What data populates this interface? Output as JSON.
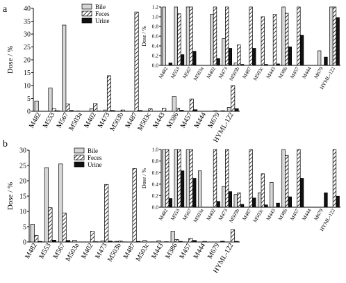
{
  "figure": {
    "panel_a_label": "a",
    "panel_b_label": "b"
  },
  "colors": {
    "bile": "#d6d6d6",
    "urine": "#111111",
    "feces_fill": "#ffffff",
    "feces_hatch": "#000000"
  },
  "chart_data": [
    {
      "panel": "a",
      "type": "bar",
      "ylabel": "Dose / %",
      "ylim": [
        0,
        40
      ],
      "yticks": [
        0,
        5,
        10,
        15,
        20,
        25,
        30,
        35,
        40
      ],
      "categories": [
        "M482",
        "M553",
        "M567",
        "M503a",
        "M402",
        "M473",
        "M503b",
        "M487",
        "M503c",
        "M443",
        "M386",
        "M457",
        "M444",
        "M679",
        "HYML-122"
      ],
      "legend": [
        "Bile",
        "Feces",
        "Urine"
      ],
      "series": [
        {
          "name": "Bile",
          "pattern": "solid-gray",
          "values": [
            4.0,
            9.0,
            33.5,
            0.1,
            1.0,
            0.5,
            0.0,
            0.0,
            0.0,
            0.0,
            5.8,
            0.0,
            0.0,
            0.2,
            1.5
          ]
        },
        {
          "name": "Feces",
          "pattern": "hatched",
          "values": [
            0.0,
            1.0,
            2.8,
            0.0,
            3.0,
            13.8,
            0.5,
            38.6,
            1.0,
            1.2,
            1.2,
            4.8,
            0.0,
            0.0,
            10.0
          ]
        },
        {
          "name": "Urine",
          "pattern": "solid-black",
          "values": [
            0.0,
            0.2,
            0.3,
            0.0,
            0.1,
            0.3,
            0.0,
            0.3,
            0.0,
            0.0,
            0.4,
            0.6,
            0.0,
            0.2,
            1.0
          ]
        }
      ]
    },
    {
      "panel": "a-inset",
      "type": "bar",
      "ylabel": "Dose / %",
      "ylim": [
        0,
        1.2
      ],
      "yticks": [
        0,
        0.2,
        0.4,
        0.6,
        0.8,
        1.0,
        1.2
      ],
      "categories": [
        "M482",
        "M553",
        "M567",
        "M503a",
        "M402",
        "M473",
        "M503b",
        "M487",
        "M503c",
        "M443",
        "M386",
        "M457",
        "M444",
        "M679",
        "HYML-122"
      ],
      "series": [
        {
          "name": "Bile",
          "values": [
            1.2,
            1.2,
            1.2,
            0.0,
            1.05,
            0.55,
            0.05,
            0.0,
            0.0,
            0.0,
            1.2,
            0.0,
            0.0,
            0.3,
            1.2
          ]
        },
        {
          "name": "Feces",
          "values": [
            0.0,
            1.06,
            1.2,
            0.0,
            1.2,
            1.2,
            0.42,
            1.2,
            1.0,
            1.05,
            1.07,
            1.2,
            0.0,
            0.0,
            1.2
          ]
        },
        {
          "name": "Urine",
          "values": [
            0.05,
            0.22,
            0.29,
            0.0,
            0.14,
            0.35,
            0.02,
            0.35,
            0.02,
            0.03,
            0.38,
            0.62,
            0.0,
            0.17,
            0.98
          ]
        }
      ]
    },
    {
      "panel": "b",
      "type": "bar",
      "ylabel": "Dose / %",
      "ylim": [
        0,
        30
      ],
      "yticks": [
        0,
        5,
        10,
        15,
        20,
        25,
        30
      ],
      "categories": [
        "M482",
        "M553",
        "M567",
        "M503a",
        "M402",
        "M473",
        "M503b",
        "M487",
        "M503c",
        "M443",
        "M386",
        "M457",
        "M444",
        "M679",
        "HYML-122"
      ],
      "legend": [
        "Bile",
        "Feces",
        "Urine"
      ],
      "series": [
        {
          "name": "Bile",
          "pattern": "solid-gray",
          "values": [
            5.8,
            24.3,
            25.5,
            0.6,
            0.0,
            0.3,
            0.2,
            0.0,
            0.5,
            0.4,
            3.5,
            0.0,
            0.0,
            0.0,
            0.0
          ]
        },
        {
          "name": "Feces",
          "pattern": "hatched",
          "values": [
            2.2,
            11.2,
            9.5,
            0.0,
            3.5,
            18.8,
            0.3,
            24.0,
            0.0,
            0.0,
            0.8,
            1.2,
            0.2,
            0.0,
            4.0
          ]
        },
        {
          "name": "Urine",
          "pattern": "solid-black",
          "values": [
            0.2,
            0.6,
            0.5,
            0.0,
            0.1,
            0.3,
            0.05,
            0.2,
            0.05,
            0.1,
            0.2,
            0.5,
            0.0,
            0.25,
            0.2
          ]
        }
      ]
    },
    {
      "panel": "b-inset",
      "type": "bar",
      "ylabel": "Dose / %",
      "ylim": [
        0,
        1.0
      ],
      "yticks": [
        0,
        0.2,
        0.4,
        0.6,
        0.8,
        1.0
      ],
      "categories": [
        "M482",
        "M553",
        "M567",
        "M503a",
        "M402",
        "M473",
        "M503b",
        "M487",
        "M503c",
        "M443",
        "M386",
        "M457",
        "M444",
        "M679",
        "HYML-122"
      ],
      "series": [
        {
          "name": "Bile",
          "values": [
            1.0,
            1.0,
            1.0,
            0.63,
            0.0,
            0.36,
            0.22,
            0.0,
            0.25,
            0.43,
            1.0,
            0.0,
            0.0,
            0.0,
            0.0
          ]
        },
        {
          "name": "Feces",
          "values": [
            1.0,
            1.0,
            1.0,
            0.0,
            1.0,
            1.0,
            0.25,
            1.0,
            0.58,
            0.0,
            0.9,
            1.0,
            0.0,
            0.0,
            1.0
          ]
        },
        {
          "name": "Urine",
          "values": [
            0.15,
            0.63,
            0.5,
            0.0,
            0.1,
            0.27,
            0.05,
            0.16,
            0.04,
            0.07,
            0.18,
            0.5,
            0.0,
            0.25,
            0.19
          ]
        }
      ]
    }
  ]
}
